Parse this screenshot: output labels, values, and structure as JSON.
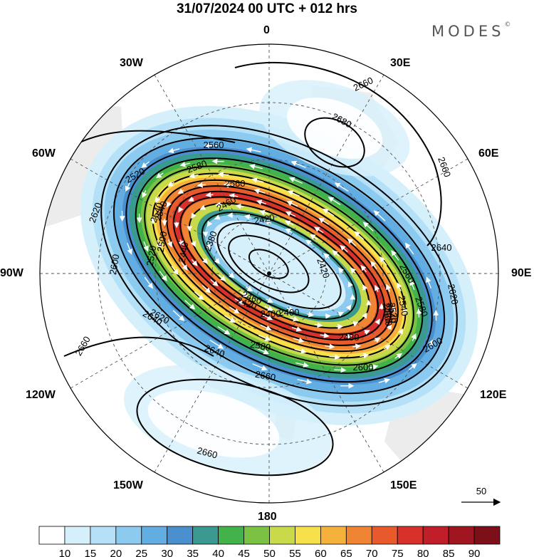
{
  "title": "31/07/2024  00 UTC  + 012 hrs",
  "brand": {
    "text": "MODES",
    "mark": "©"
  },
  "longitude_labels": {
    "top": "0",
    "bottom": "180",
    "left": "90W",
    "right": "90E",
    "lon30w": "30W",
    "lon30e": "30E",
    "lon60w": "60W",
    "lon60e": "60E",
    "lon120w": "120W",
    "lon120e": "120E",
    "lon150w": "150W",
    "lon150e": "150E"
  },
  "contour_labels": [
    "2660",
    "2680",
    "2660",
    "2640",
    "2620",
    "2600",
    "2580",
    "2560",
    "2540",
    "2520",
    "2500",
    "2480",
    "2460",
    "2440",
    "2420",
    "2400",
    "2380",
    "2420",
    "2400",
    "2420",
    "2440",
    "2460",
    "2480",
    "2500",
    "2520",
    "2540",
    "2560",
    "2580",
    "2600",
    "2620",
    "2640",
    "2660",
    "2660",
    "2660",
    "2640",
    "2620",
    "2600",
    "2580",
    "2560",
    "2540",
    "2520"
  ],
  "reference_vector": {
    "label": "50",
    "icon": "arrow-right-icon"
  },
  "colorbar": {
    "labels": [
      "10",
      "15",
      "20",
      "25",
      "30",
      "35",
      "40",
      "45",
      "50",
      "55",
      "60",
      "65",
      "70",
      "75",
      "80",
      "85",
      "90"
    ],
    "colors": [
      "#ffffff",
      "#d6f0fb",
      "#b4e1f7",
      "#8ccaf0",
      "#62aee3",
      "#4a8fce",
      "#3a9a8f",
      "#42b34a",
      "#7bc142",
      "#c8d94a",
      "#f7e04a",
      "#f6b03c",
      "#ef8532",
      "#e85a2b",
      "#d8302a",
      "#c01e28",
      "#a0151f",
      "#7d0f18"
    ]
  },
  "map": {
    "background_color": "#ffffff",
    "land_color": "#e8e8e8",
    "contour_color": "#000000",
    "wind_vector_color": "#ffffff"
  }
}
